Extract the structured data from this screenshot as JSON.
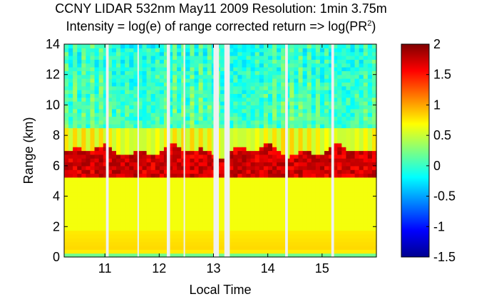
{
  "chart_data": {
    "type": "heatmap",
    "title": "CCNY LIDAR 532nm May11 2009 Resolution: 1min 3.75m",
    "subtitle_prefix": "Intensity = log(e) of range corrected return => log(PR",
    "subtitle_sup": "2",
    "subtitle_suffix": ")",
    "xlabel": "Local Time",
    "ylabel": "Range (km)",
    "xlim": [
      10.25,
      16.0
    ],
    "ylim": [
      0,
      14
    ],
    "xticks": [
      {
        "value": 11,
        "label": "11"
      },
      {
        "value": 12,
        "label": "12"
      },
      {
        "value": 13,
        "label": "13"
      },
      {
        "value": 14,
        "label": "14"
      },
      {
        "value": 15,
        "label": "15"
      }
    ],
    "yticks": [
      {
        "value": 0,
        "label": "0"
      },
      {
        "value": 2,
        "label": "2"
      },
      {
        "value": 4,
        "label": "4"
      },
      {
        "value": 6,
        "label": "6"
      },
      {
        "value": 8,
        "label": "8"
      },
      {
        "value": 10,
        "label": "10"
      },
      {
        "value": 12,
        "label": "12"
      },
      {
        "value": 14,
        "label": "14"
      }
    ],
    "colorbar": {
      "colormap": "jet",
      "clim": [
        -1.5,
        2
      ],
      "ticks": [
        {
          "value": 2,
          "label": "2"
        },
        {
          "value": 1.5,
          "label": "1.5"
        },
        {
          "value": 1,
          "label": "1"
        },
        {
          "value": 0.5,
          "label": "0.5"
        },
        {
          "value": 0,
          "label": "0"
        },
        {
          "value": -0.5,
          "label": "-0.5"
        },
        {
          "value": -1,
          "label": "-1"
        },
        {
          "value": -1.5,
          "label": "-1.5"
        }
      ]
    },
    "layers": {
      "cloud_base_km": 5.3,
      "cloud_top_km": 7.0,
      "boundary_layer_top_km": 1.8,
      "cloud_value": 1.9,
      "aerosol_value": 0.65,
      "boundary_layer_value": 0.85,
      "free_troposphere_value": 0.0
    },
    "data_gaps_hours": [
      [
        11.02,
        11.07
      ],
      [
        11.6,
        11.62
      ],
      [
        12.14,
        12.2
      ],
      [
        12.45,
        12.47
      ],
      [
        13.0,
        13.1
      ],
      [
        13.2,
        13.3
      ],
      [
        14.32,
        14.37
      ],
      [
        15.17,
        15.22
      ]
    ]
  }
}
